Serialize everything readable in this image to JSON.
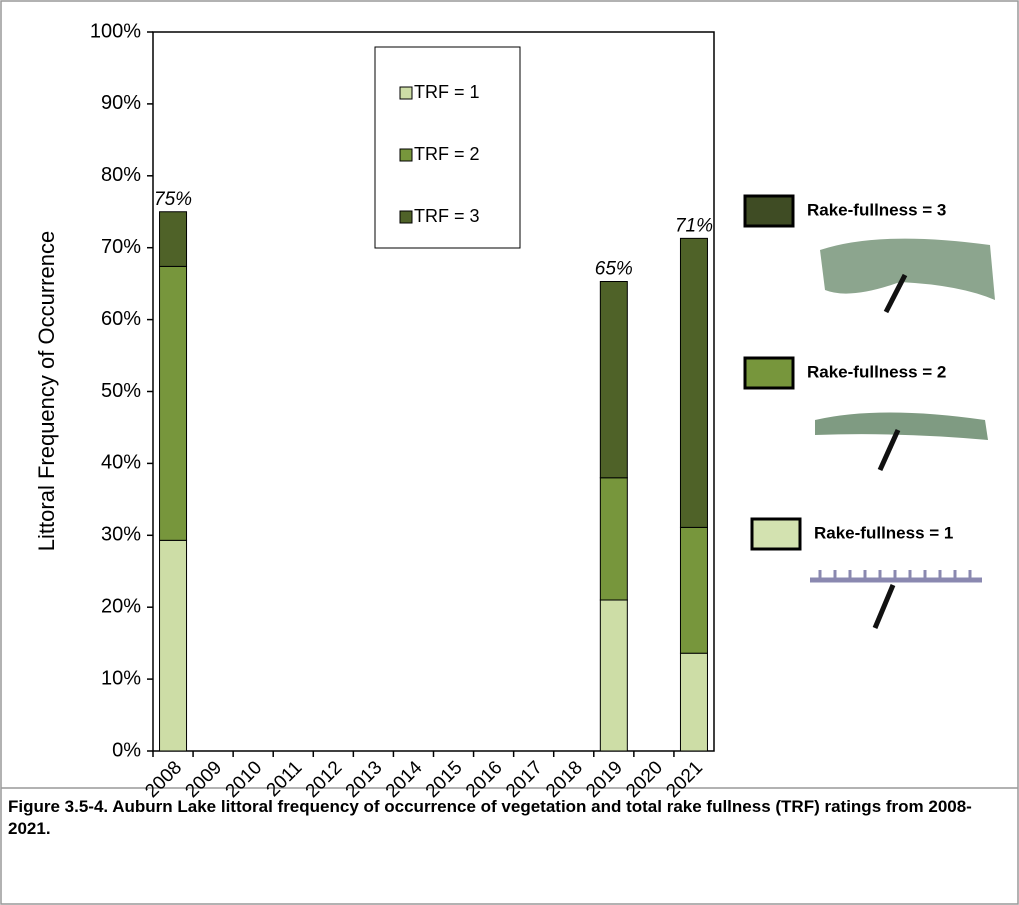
{
  "chart_data": {
    "type": "stacked_bar",
    "y_label": "Littoral Frequency of Occurrence",
    "categories": [
      "2008",
      "2009",
      "2010",
      "2011",
      "2012",
      "2013",
      "2014",
      "2015",
      "2016",
      "2017",
      "2018",
      "2019",
      "2020",
      "2021"
    ],
    "series": [
      {
        "name": "TRF = 1",
        "color": "#cddda6",
        "values": [
          29.3,
          null,
          null,
          null,
          null,
          null,
          null,
          null,
          null,
          null,
          null,
          21,
          null,
          13.6
        ]
      },
      {
        "name": "TRF = 2",
        "color": "#77963c",
        "values": [
          38.1,
          null,
          null,
          null,
          null,
          null,
          null,
          null,
          null,
          null,
          null,
          17,
          null,
          17.5
        ]
      },
      {
        "name": "TRF = 3",
        "color": "#4f6228",
        "values": [
          7.6,
          null,
          null,
          null,
          null,
          null,
          null,
          null,
          null,
          null,
          null,
          27.3,
          null,
          40.2
        ]
      }
    ],
    "totals": [
      75,
      null,
      null,
      null,
      null,
      null,
      null,
      null,
      null,
      null,
      null,
      65.3,
      null,
      71.3
    ],
    "total_labels": [
      "75%",
      null,
      null,
      null,
      null,
      null,
      null,
      null,
      null,
      null,
      null,
      "65%",
      null,
      "71%"
    ],
    "ylim": [
      0,
      100
    ],
    "yticks": [
      {
        "value": 0,
        "label": "0%"
      },
      {
        "value": 10,
        "label": "10%"
      },
      {
        "value": 20,
        "label": "20%"
      },
      {
        "value": 30,
        "label": "30%"
      },
      {
        "value": 40,
        "label": "40%"
      },
      {
        "value": 50,
        "label": "50%"
      },
      {
        "value": 60,
        "label": "60%"
      },
      {
        "value": 70,
        "label": "70%"
      },
      {
        "value": 80,
        "label": "80%"
      },
      {
        "value": 90,
        "label": "90%"
      },
      {
        "value": 100,
        "label": "100%"
      }
    ],
    "rake_legend": [
      {
        "label": "Rake-fullness = 3",
        "color": "#3f4c24"
      },
      {
        "label": "Rake-fullness = 2",
        "color": "#77963c"
      },
      {
        "label": "Rake-fullness = 1",
        "color": "#d3e2b0"
      }
    ],
    "caption": "Figure 3.5-4.  Auburn Lake littoral frequency of occurrence of vegetation and total rake fullness (TRF) ratings from 2008-2021."
  }
}
